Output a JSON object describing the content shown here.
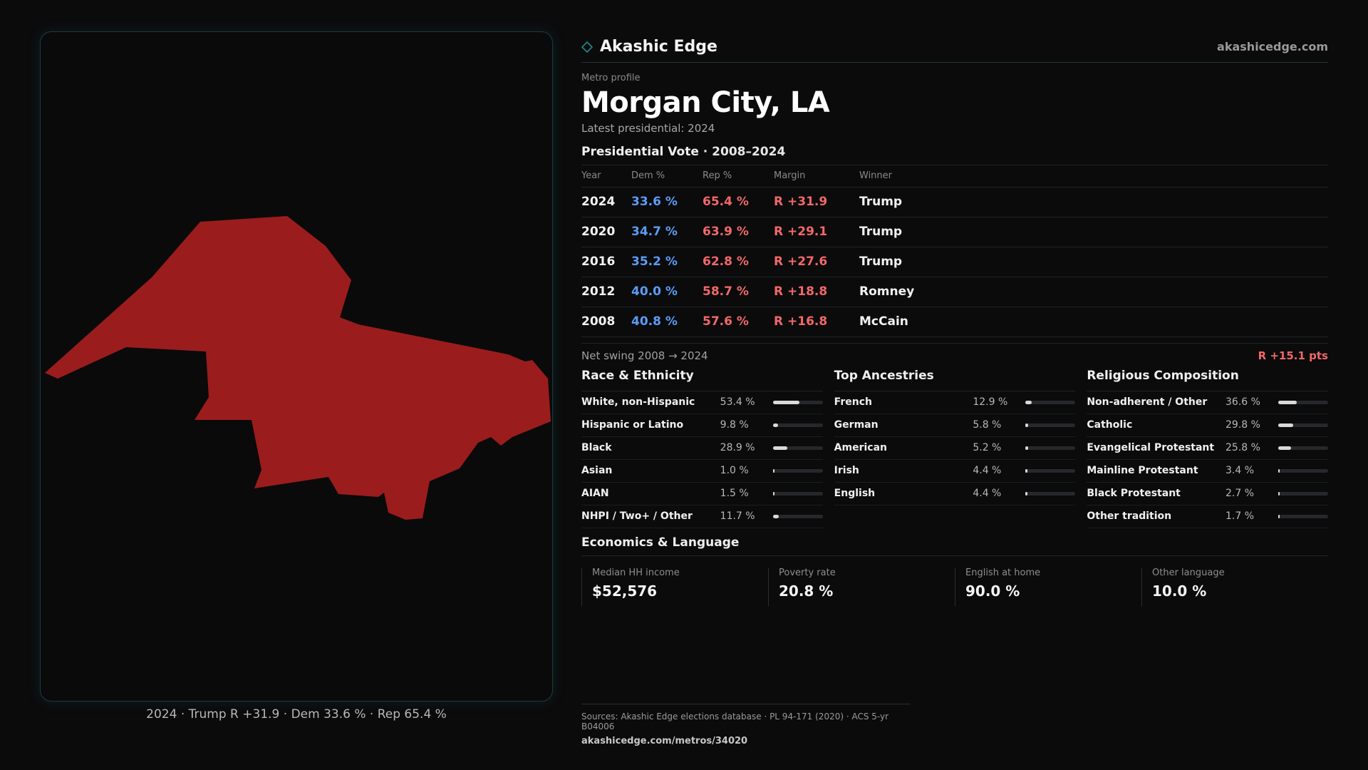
{
  "brand": {
    "name": "Akashic Edge",
    "site": "akashicedge.com",
    "accent": "#1f8a8a"
  },
  "header": {
    "eyebrow": "Metro profile",
    "title": "Morgan City, LA",
    "subtitle": "Latest presidential: 2024"
  },
  "map": {
    "caption": "2024 · Trump R +31.9 · Dem 33.6 % · Rep 65.4 %",
    "fill_color": "#9b1c1c"
  },
  "votes": {
    "heading": "Presidential Vote",
    "range": "· 2008–2024",
    "columns": [
      "Year",
      "Dem %",
      "Rep %",
      "Margin",
      "Winner"
    ],
    "rows": [
      {
        "year": "2024",
        "dem": "33.6 %",
        "rep": "65.4 %",
        "margin": "R +31.9",
        "winner": "Trump"
      },
      {
        "year": "2020",
        "dem": "34.7 %",
        "rep": "63.9 %",
        "margin": "R +29.1",
        "winner": "Trump"
      },
      {
        "year": "2016",
        "dem": "35.2 %",
        "rep": "62.8 %",
        "margin": "R +27.6",
        "winner": "Trump"
      },
      {
        "year": "2012",
        "dem": "40.0 %",
        "rep": "58.7 %",
        "margin": "R +18.8",
        "winner": "Romney"
      },
      {
        "year": "2008",
        "dem": "40.8 %",
        "rep": "57.6 %",
        "margin": "R +16.8",
        "winner": "McCain"
      }
    ],
    "swing_label": "Net swing 2008 → 2024",
    "swing_value": "R +15.1 pts"
  },
  "race": {
    "heading": "Race & Ethnicity",
    "items": [
      {
        "label": "White, non-Hispanic",
        "pct": "53.4 %",
        "value": 53.4
      },
      {
        "label": "Hispanic or Latino",
        "pct": "9.8 %",
        "value": 9.8
      },
      {
        "label": "Black",
        "pct": "28.9 %",
        "value": 28.9
      },
      {
        "label": "Asian",
        "pct": "1.0 %",
        "value": 1.0
      },
      {
        "label": "AIAN",
        "pct": "1.5 %",
        "value": 1.5
      },
      {
        "label": "NHPI / Two+ / Other",
        "pct": "11.7 %",
        "value": 11.7
      }
    ]
  },
  "ancestry": {
    "heading": "Top Ancestries",
    "items": [
      {
        "label": "French",
        "pct": "12.9 %",
        "value": 12.9
      },
      {
        "label": "German",
        "pct": "5.8 %",
        "value": 5.8
      },
      {
        "label": "American",
        "pct": "5.2 %",
        "value": 5.2
      },
      {
        "label": "Irish",
        "pct": "4.4 %",
        "value": 4.4
      },
      {
        "label": "English",
        "pct": "4.4 %",
        "value": 4.4
      }
    ]
  },
  "religion": {
    "heading": "Religious Composition",
    "items": [
      {
        "label": "Non-adherent / Other",
        "pct": "36.6 %",
        "value": 36.6
      },
      {
        "label": "Catholic",
        "pct": "29.8 %",
        "value": 29.8
      },
      {
        "label": "Evangelical Protestant",
        "pct": "25.8 %",
        "value": 25.8
      },
      {
        "label": "Mainline Protestant",
        "pct": "3.4 %",
        "value": 3.4
      },
      {
        "label": "Black Protestant",
        "pct": "2.7 %",
        "value": 2.7
      },
      {
        "label": "Other tradition",
        "pct": "1.7 %",
        "value": 1.7
      }
    ]
  },
  "economics": {
    "heading": "Economics & Language",
    "cards": [
      {
        "label": "Median HH income",
        "value": "$52,576"
      },
      {
        "label": "Poverty rate",
        "value": "20.8 %"
      },
      {
        "label": "English at home",
        "value": "90.0 %"
      },
      {
        "label": "Other language",
        "value": "10.0 %"
      }
    ]
  },
  "footer": {
    "sources": "Sources: Akashic Edge elections database · PL 94-171 (2020) · ACS 5-yr B04006",
    "url": "akashicedge.com/metros/34020"
  }
}
